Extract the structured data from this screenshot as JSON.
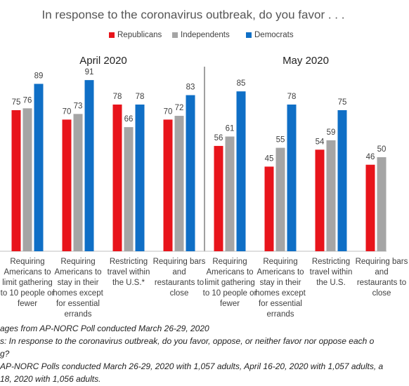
{
  "chart_data": {
    "type": "bar",
    "title": "In response to the coronavirus outbreak, do you favor . . .",
    "panel_labels": [
      "April 2020",
      "May 2020"
    ],
    "categories": [
      "Requiring Americans to limit gathering to 10 people or fewer",
      "Requiring Americans to stay in their homes except for essential errands",
      "Restricting travel within the U.S.*",
      "Requiring bars and restaurants to close",
      "Requiring Americans to limit gathering to 10 people or fewer",
      "Requiring Americans to stay in their homes except for essential errands",
      "Restricting travel within the U.S.",
      "Requiring bars and restaurants to close"
    ],
    "series": [
      {
        "name": "Republicans",
        "color": "#e8141b",
        "values": [
          75,
          70,
          78,
          70,
          56,
          45,
          54,
          46
        ]
      },
      {
        "name": "Independents",
        "color": "#a5a5a5",
        "values": [
          76,
          73,
          66,
          72,
          61,
          55,
          59,
          50
        ]
      },
      {
        "name": "Democrats",
        "color": "#0f6fc6",
        "values": [
          89,
          91,
          78,
          83,
          85,
          78,
          75,
          null
        ]
      }
    ],
    "ylim": [
      0,
      100
    ],
    "notes": [
      "ages from AP-NORC Poll conducted March 26-29, 2020",
      "s: In response to the coronavirus outbreak, do you favor, oppose, or neither favor nor oppose each o",
      "g?",
      "AP-NORC Polls conducted March 26-29, 2020 with 1,057 adults, April 16-20, 2020 with 1,057 adults, a",
      "18, 2020 with 1,056 adults."
    ]
  }
}
